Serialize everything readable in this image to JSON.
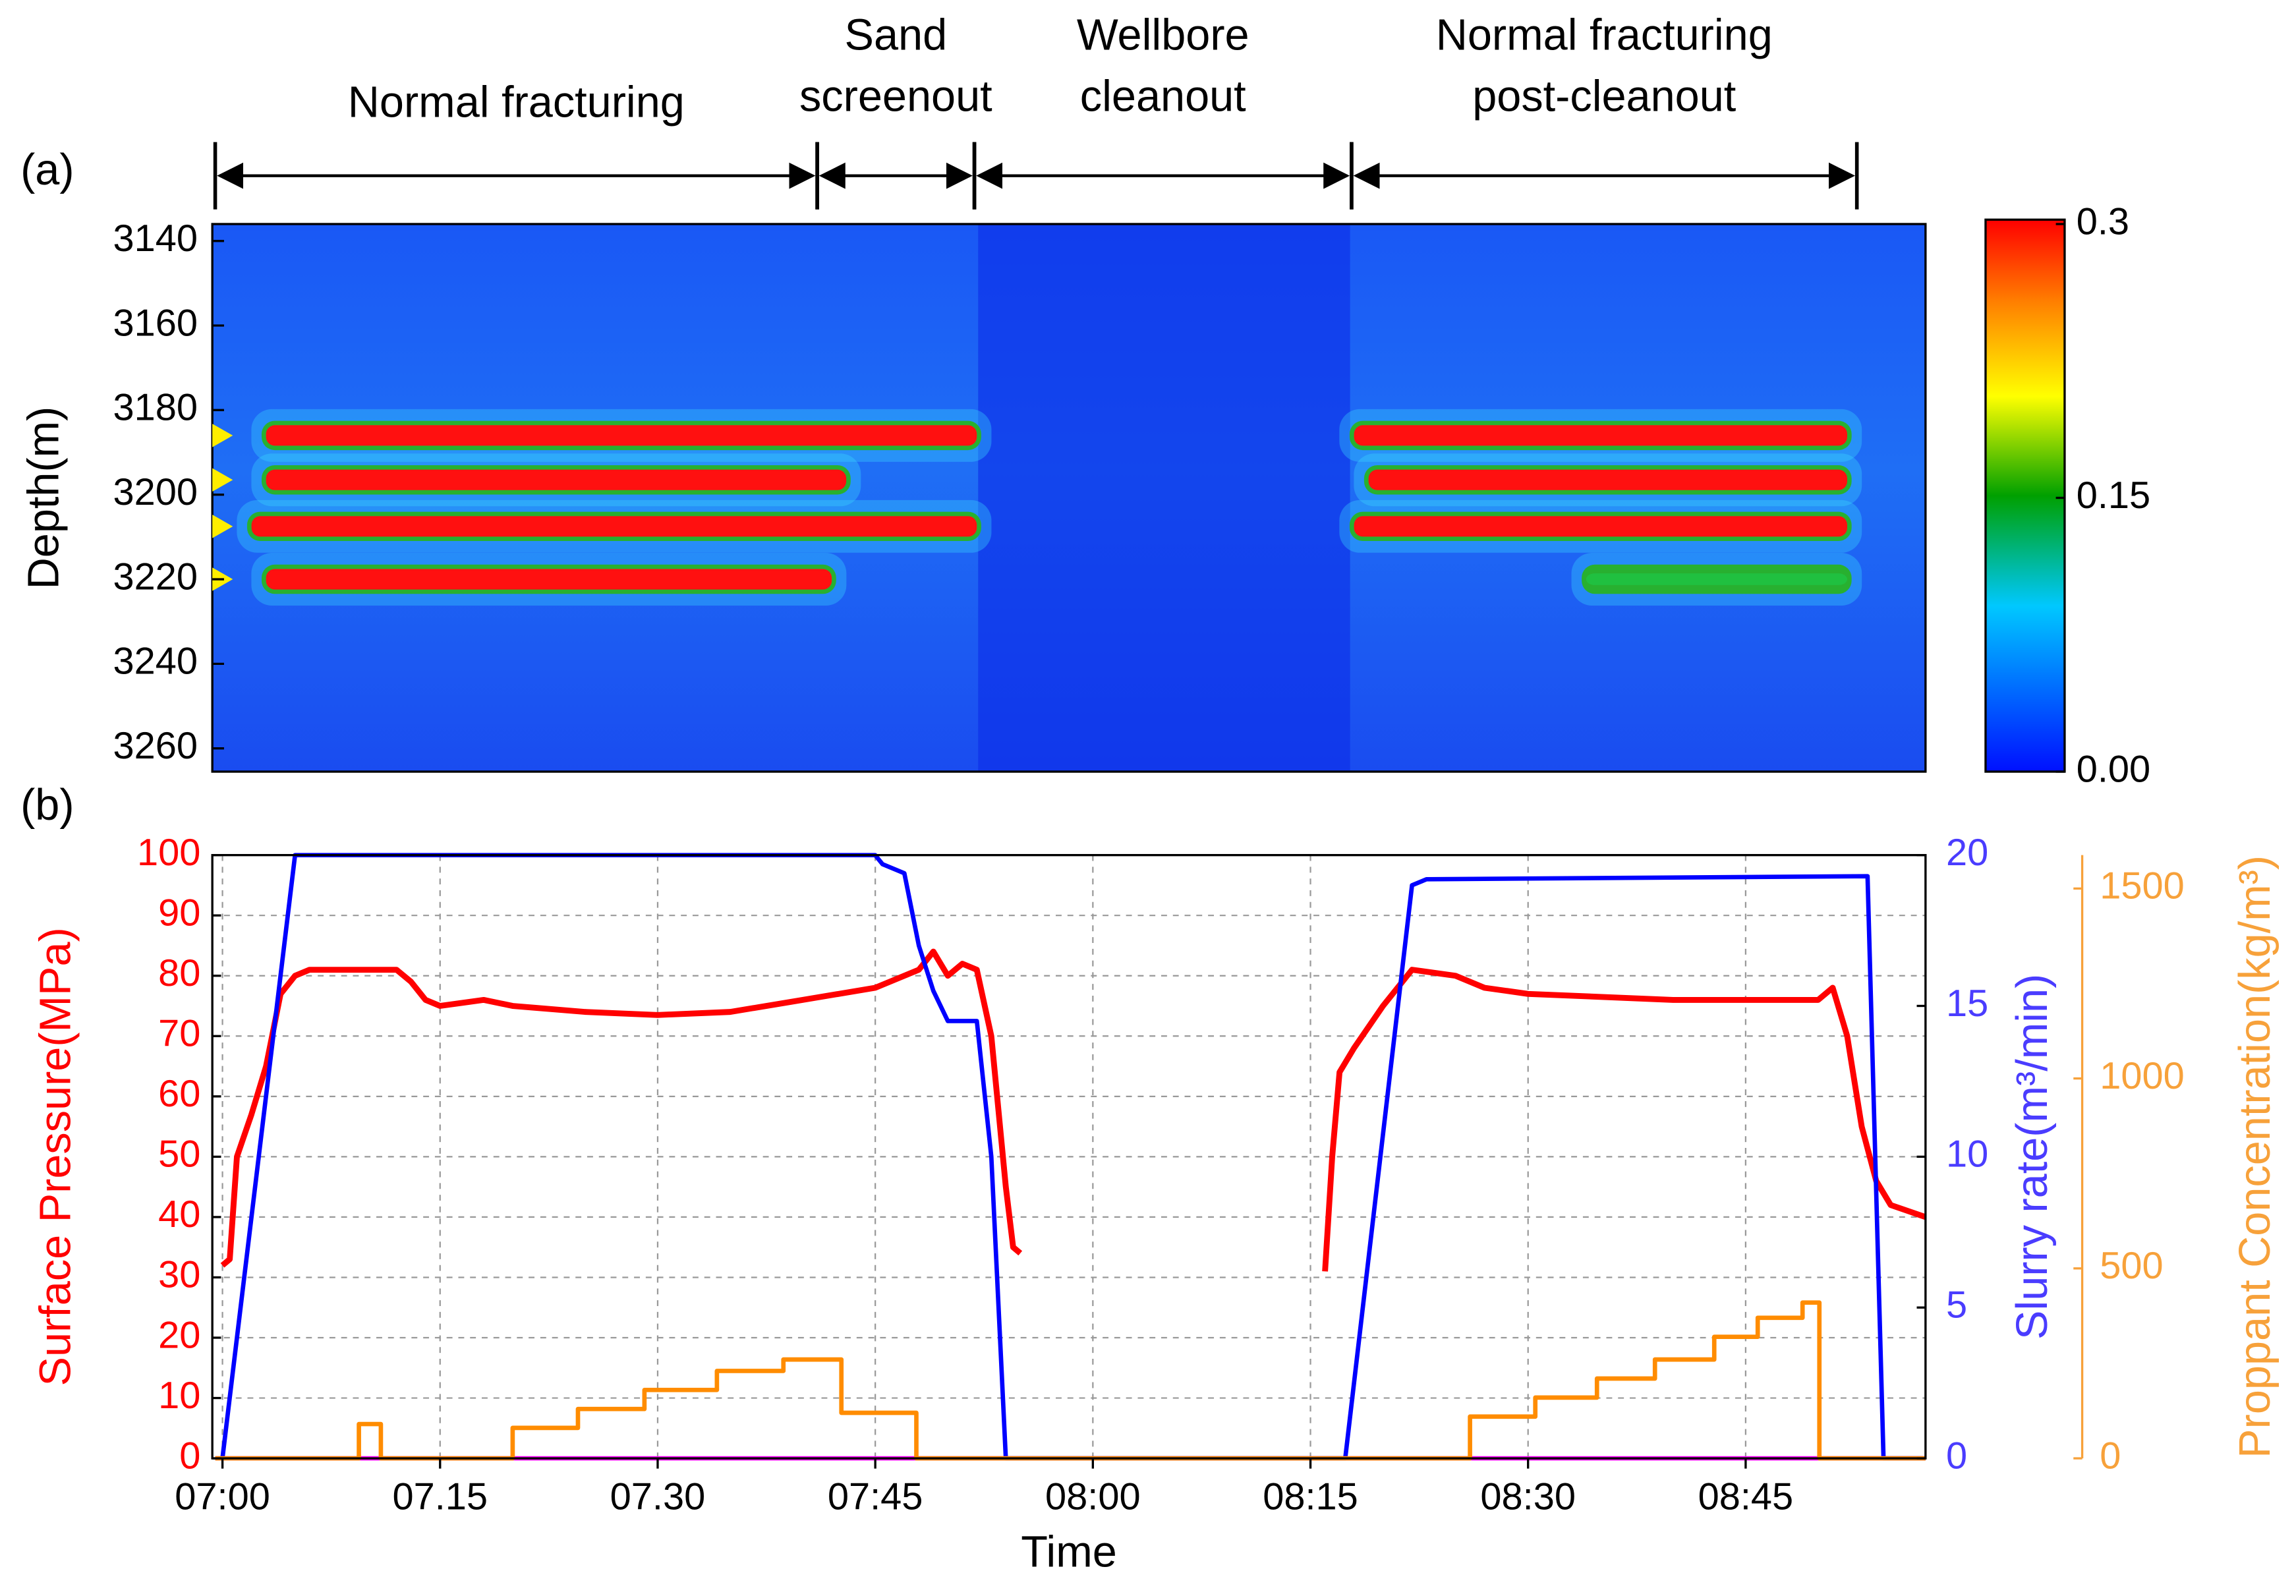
{
  "chart_data": [
    {
      "type": "heatmap",
      "panel_label": "(a)",
      "ylabel": "Depth(m)",
      "xlim": [
        "06:59:18",
        "08:57:24"
      ],
      "ylim": [
        3136,
        3265.5
      ],
      "y_inverted": true,
      "yticks": [
        3140,
        3160,
        3180,
        3200,
        3220,
        3240,
        3260
      ],
      "phases": [
        {
          "label": [
            "Normal fracturing"
          ],
          "start": "06:59:30",
          "end": "07:41:00"
        },
        {
          "label": [
            "Sand",
            "screenout"
          ],
          "start": "07:41:00",
          "end": "07:51:50"
        },
        {
          "label": [
            "Wellbore",
            "cleanout"
          ],
          "start": "07:51:50",
          "end": "08:17:50"
        },
        {
          "label": [
            "Normal fracturing",
            "post-cleanout"
          ],
          "start": "08:17:50",
          "end": "08:52:40"
        }
      ],
      "markers": {
        "color": "#ffee00",
        "values": [
          3186,
          3196.5,
          3207.5,
          3220
        ]
      },
      "bands": [
        {
          "depth": 3186,
          "start": "07:03:00",
          "end": "07:52:00",
          "value": 0.3
        },
        {
          "depth": 3196.5,
          "start": "07:03:00",
          "end": "07:43:00",
          "value": 0.3
        },
        {
          "depth": 3207.5,
          "start": "07:02:00",
          "end": "07:52:00",
          "value": 0.3
        },
        {
          "depth": 3220,
          "start": "07:03:00",
          "end": "07:42:00",
          "value": 0.3
        },
        {
          "depth": 3186,
          "start": "08:18:00",
          "end": "08:52:00",
          "value": 0.3
        },
        {
          "depth": 3196.5,
          "start": "08:19:00",
          "end": "08:52:00",
          "value": 0.3
        },
        {
          "depth": 3207.5,
          "start": "08:18:00",
          "end": "08:52:00",
          "value": 0.3
        },
        {
          "depth": 3220,
          "start": "08:34:00",
          "end": "08:52:00",
          "value": 0.15
        }
      ],
      "colorbar": {
        "lim": [
          0,
          0.3
        ],
        "ticks": [
          0.3,
          0.15,
          {
            "value": 0,
            "label": "0.00"
          }
        ]
      }
    },
    {
      "type": "line",
      "panel_label": "(b)",
      "xlabel": "Time",
      "ylabel": "Surface Pressure(MPa)",
      "y2label": "Slurry rate(m³/min)",
      "y3label": "Proppant Concentration(kg/m³)",
      "ycolor": "#ff0000",
      "y2color": "#4a3cff",
      "y3color": "#f7a13a",
      "xlim": [
        "06:59:18",
        "08:57:24"
      ],
      "xticks": [
        {
          "value": "07:00",
          "label": "07:00"
        },
        {
          "value": "07:15",
          "label": "07.15"
        },
        {
          "value": "07:30",
          "label": "07.30"
        },
        {
          "value": "07:45",
          "label": "07:45"
        },
        {
          "value": "08:00",
          "label": "08:00"
        },
        {
          "value": "08:15",
          "label": "08:15"
        },
        {
          "value": "08:30",
          "label": "08:30"
        },
        {
          "value": "08:45",
          "label": "08:45"
        }
      ],
      "ylim": [
        0,
        100
      ],
      "yticks": [
        0,
        10,
        20,
        30,
        40,
        50,
        60,
        70,
        80,
        90,
        100
      ],
      "y2lim": [
        0,
        20
      ],
      "y2ticks": [
        0,
        5,
        10,
        15,
        20
      ],
      "y3lim": [
        0,
        1588
      ],
      "y3ticks": [
        0,
        500,
        1000,
        1500
      ],
      "grid": true,
      "series": [
        {
          "color": "#ff00ff",
          "axis": "y",
          "x": [
            "06:59:30",
            "08:57:24"
          ],
          "values": [
            0,
            0
          ]
        },
        {
          "color": "#ff0000",
          "axis": "y",
          "x": [
            "07:00:00",
            "07:00:30",
            "07:01:00",
            "07:02:00",
            "07:03:00",
            "07:04:00",
            "07:05:00",
            "07:06:00",
            "07:12:00",
            "07:13:00",
            "07:14:00",
            "07:15:00",
            "07:18:00",
            "07:20:00",
            "07:25:00",
            "07:30:00",
            "07:35:00",
            "07:40:00",
            "07:45:00",
            "07:48:00",
            "07:49:00",
            "07:50:00",
            "07:51:00",
            "07:52:00",
            "07:53:00",
            "07:54:00",
            "07:54:30",
            "07:55:00",
            "07:56:00",
            "08:16:00",
            "08:16:30",
            "08:17:00",
            "08:18:00",
            "08:20:00",
            "08:22:00",
            "08:25:00",
            "08:27:00",
            "08:30:00",
            "08:40:00",
            "08:50:00",
            "08:51:00",
            "08:52:00",
            "08:53:00",
            "08:54:00",
            "08:55:00",
            "08:57:24"
          ],
          "values": [
            32,
            33,
            50,
            57,
            65,
            77,
            80,
            81,
            81,
            79,
            76,
            75,
            76,
            75,
            74,
            73.5,
            74,
            76,
            78,
            81,
            84,
            80,
            82,
            81,
            70,
            45,
            35,
            34,
            null,
            31,
            50,
            64,
            68,
            75,
            81,
            80,
            78,
            77,
            76,
            76,
            78,
            70,
            55,
            46,
            42,
            40
          ]
        },
        {
          "color": "#0000ff",
          "axis": "y2",
          "x": [
            "07:00:00",
            "07:05:00",
            "07:45:00",
            "07:45:30",
            "07:47:00",
            "07:48:00",
            "07:49:00",
            "07:50:00",
            "07:52:00",
            "07:53:00",
            "07:54:00",
            "08:17:24",
            "08:22:00",
            "08:23:00",
            "08:53:24",
            "08:54:30",
            "08:57:24"
          ],
          "values": [
            0,
            20,
            20,
            19.7,
            19.4,
            17,
            15.5,
            14.5,
            14.5,
            10,
            0,
            0,
            19,
            19.2,
            19.3,
            0,
            0
          ]
        },
        {
          "color": "#ff8c00",
          "axis": "y3",
          "x": [
            "06:59:30",
            "07:09:24",
            "07:09:24",
            "07:10:55",
            "07:10:55",
            "07:20:00",
            "07:20:00",
            "07:24:30",
            "07:24:30",
            "07:29:05",
            "07:29:05",
            "07:34:05",
            "07:34:05",
            "07:38:40",
            "07:38:40",
            "07:42:40",
            "07:42:40",
            "07:47:50",
            "07:47:50",
            "08:26:00",
            "08:26:00",
            "08:30:30",
            "08:30:30",
            "08:34:45",
            "08:34:45",
            "08:38:45",
            "08:38:45",
            "08:42:50",
            "08:42:50",
            "08:45:50",
            "08:45:50",
            "08:48:55",
            "08:48:55",
            "08:50:05",
            "08:50:05",
            "08:57:24"
          ],
          "values": [
            0,
            0,
            90,
            90,
            0,
            0,
            80,
            80,
            130,
            130,
            180,
            180,
            230,
            230,
            260,
            260,
            120,
            120,
            0,
            0,
            110,
            110,
            160,
            160,
            210,
            210,
            260,
            260,
            320,
            320,
            370,
            370,
            410,
            410,
            0,
            0
          ]
        }
      ]
    }
  ]
}
